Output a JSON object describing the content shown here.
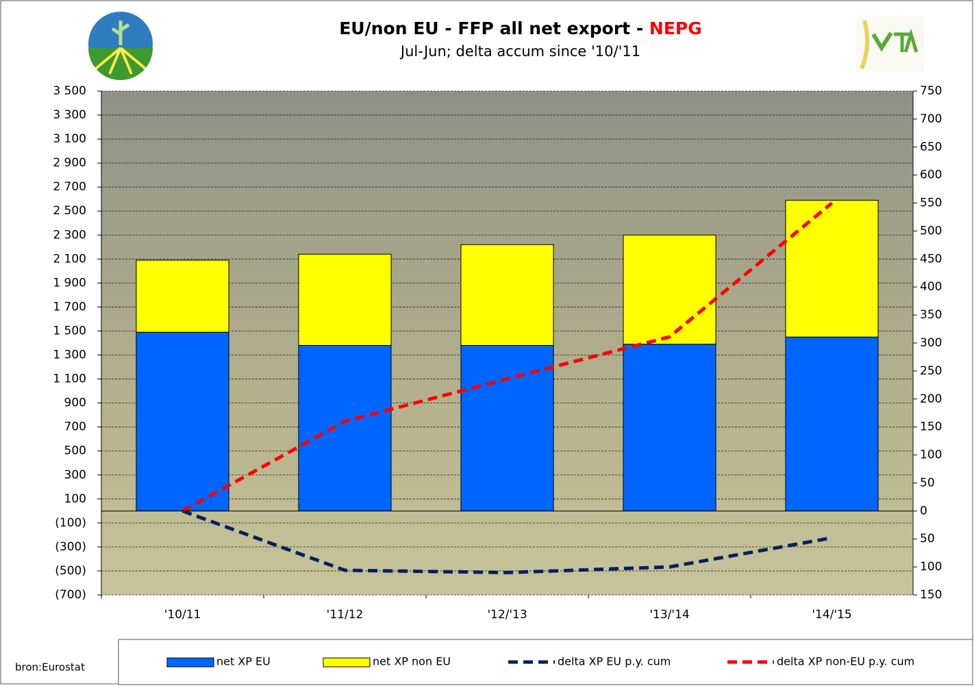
{
  "chart_data": {
    "type": "bar",
    "title": "EU/non EU - FFP all net export -",
    "title_highlight": "NEPG",
    "title_highlight_color": "#ff0000",
    "subtitle": "Jul-Jun; delta accum since '10/'11",
    "source": "bron:Eurostat",
    "stacked": true,
    "grid": true,
    "negative_tick_color": "#ff0000",
    "categories": [
      "'10/11",
      "'11/12",
      "'12/'13",
      "'13/'14",
      "'14/'15"
    ],
    "ylim": [
      -700,
      3500
    ],
    "yticks": [
      {
        "value": 3500,
        "label": "3 500"
      },
      {
        "value": 3300,
        "label": "3 300"
      },
      {
        "value": 3100,
        "label": "3 100"
      },
      {
        "value": 2900,
        "label": "2 900"
      },
      {
        "value": 2700,
        "label": "2 700"
      },
      {
        "value": 2500,
        "label": "2 500"
      },
      {
        "value": 2300,
        "label": "2 300"
      },
      {
        "value": 2100,
        "label": "2 100"
      },
      {
        "value": 1900,
        "label": "1 900"
      },
      {
        "value": 1700,
        "label": "1 700"
      },
      {
        "value": 1500,
        "label": "1 500"
      },
      {
        "value": 1300,
        "label": "1 300"
      },
      {
        "value": 1100,
        "label": "1 100"
      },
      900,
      700,
      500,
      300,
      100,
      {
        "value": -100,
        "label": "(100)"
      },
      {
        "value": -300,
        "label": "(300)"
      },
      {
        "value": -500,
        "label": "(500)"
      },
      {
        "value": -700,
        "label": "(700)"
      }
    ],
    "y2lim": [
      -150,
      750
    ],
    "y2ticks": [
      750,
      700,
      650,
      600,
      550,
      500,
      450,
      400,
      350,
      300,
      250,
      200,
      150,
      100,
      50,
      0,
      {
        "value": -50,
        "label": "50"
      },
      {
        "value": -100,
        "label": "100"
      },
      {
        "value": -150,
        "label": "150"
      }
    ],
    "series": [
      {
        "name": "net XP EU",
        "type": "bar",
        "color": "#0066ff",
        "values": [
          1490,
          1380,
          1380,
          1390,
          1450
        ]
      },
      {
        "name": "net XP non EU",
        "type": "bar",
        "color": "#ffff00",
        "values": [
          600,
          760,
          840,
          910,
          1140
        ]
      },
      {
        "name": "delta XP EU p.y. cum",
        "type": "line",
        "axis": "y2",
        "color": "#002060",
        "values": [
          0,
          -106,
          -110,
          -100,
          -48
        ]
      },
      {
        "name": "delta XP non-EU p.y. cum",
        "type": "line",
        "axis": "y2",
        "color": "#ff0000",
        "values": [
          0,
          160,
          236,
          311,
          550
        ]
      }
    ]
  }
}
